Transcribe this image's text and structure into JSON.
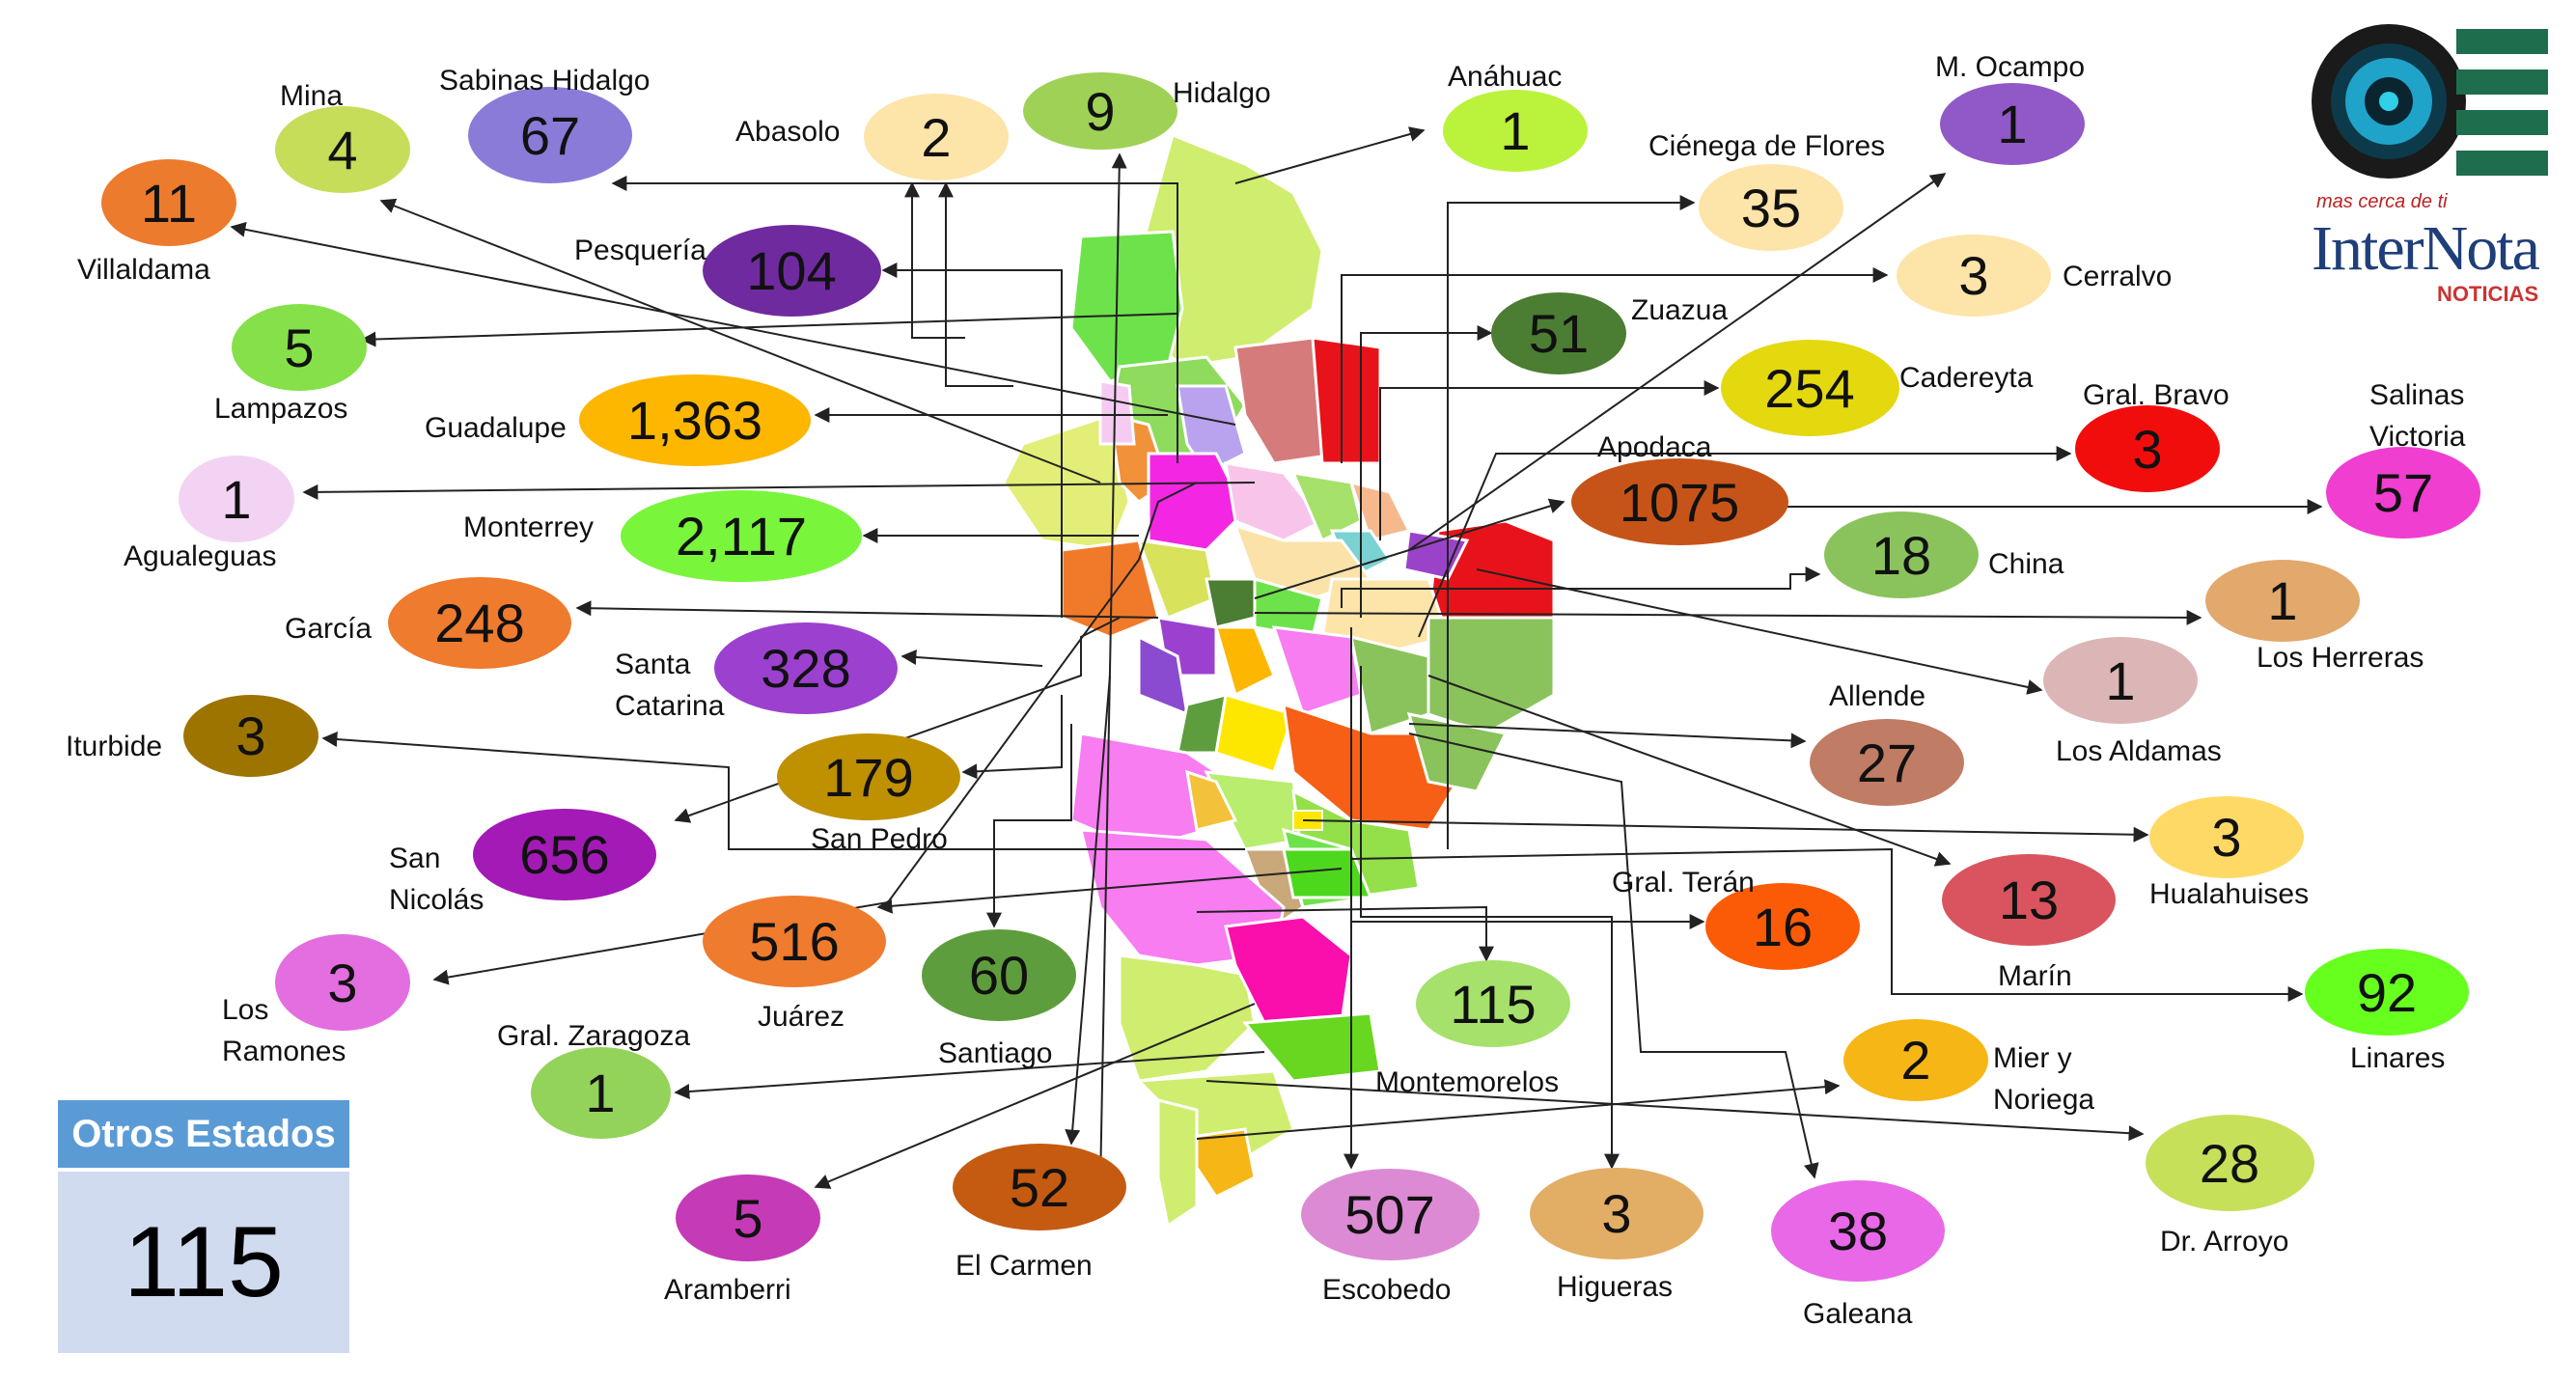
{
  "colors": {
    "line": "#222222",
    "otros_header": "#5b9bd5",
    "otros_body": "#d0dbef",
    "brand_navy": "#1f3f7a",
    "brand_green": "#1e6e4e",
    "brand_red": "#c33333"
  },
  "logo": {
    "icon": "camera-lens-icon",
    "slogan": "mas cerca de ti",
    "brand": "InterNota",
    "subtitle": "NOTICIAS"
  },
  "otros_estados": {
    "title": "Otros Estados",
    "value": "115"
  },
  "municipalities": [
    {
      "id": "mina",
      "name": "Mina",
      "cases": "4",
      "color": "#c6dd5a"
    },
    {
      "id": "sabinas",
      "name": "Sabinas Hidalgo",
      "cases": "67",
      "color": "#8b7bd8"
    },
    {
      "id": "abasolo",
      "name": "Abasolo",
      "cases": "2",
      "color": "#fde4a8"
    },
    {
      "id": "hidalgo",
      "name": "Hidalgo",
      "cases": "9",
      "color": "#9ed156"
    },
    {
      "id": "anahuac",
      "name": "Anáhuac",
      "cases": "1",
      "color": "#bbf23c"
    },
    {
      "id": "mocampo",
      "name": "M. Ocampo",
      "cases": "1",
      "color": "#9158c8"
    },
    {
      "id": "cienega",
      "name": "Ciénega de Flores",
      "cases": "35",
      "color": "#fde4a8"
    },
    {
      "id": "villaldama",
      "name": "Villaldama",
      "cases": "11",
      "color": "#ec7b2d"
    },
    {
      "id": "pesqueria",
      "name": "Pesquería",
      "cases": "104",
      "color": "#6f2aa0"
    },
    {
      "id": "cerralvo",
      "name": "Cerralvo",
      "cases": "3",
      "color": "#fde4a8"
    },
    {
      "id": "lampazos",
      "name": "Lampazos",
      "cases": "5",
      "color": "#86e04a"
    },
    {
      "id": "zuazua",
      "name": "Zuazua",
      "cases": "51",
      "color": "#4b7d32"
    },
    {
      "id": "cadereyta",
      "name": "Cadereyta",
      "cases": "254",
      "color": "#e4d80f"
    },
    {
      "id": "gralbravo",
      "name": "Gral. Bravo",
      "cases": "3",
      "color": "#f20d0d"
    },
    {
      "id": "salinas",
      "name": "Salinas\nVictoria",
      "cases": "57",
      "color": "#ef3ed0"
    },
    {
      "id": "guadalupe",
      "name": "Guadalupe",
      "cases": "1,363",
      "color": "#fdb700"
    },
    {
      "id": "apodaca",
      "name": "Apodaca",
      "cases": "1075",
      "color": "#c65418"
    },
    {
      "id": "agualeguas",
      "name": "Agualeguas",
      "cases": "1",
      "color": "#f3d3f3"
    },
    {
      "id": "monterrey",
      "name": "Monterrey",
      "cases": "2,117",
      "color": "#79f53c"
    },
    {
      "id": "china",
      "name": "China",
      "cases": "18",
      "color": "#8ac35c"
    },
    {
      "id": "herreras",
      "name": "Los Herreras",
      "cases": "1",
      "color": "#e2a86c"
    },
    {
      "id": "garcia",
      "name": "García",
      "cases": "248",
      "color": "#ef7b2e"
    },
    {
      "id": "stacatarina",
      "name": "Santa\nCatarina",
      "cases": "328",
      "color": "#9c40d0"
    },
    {
      "id": "aldamas",
      "name": "Los Aldamas",
      "cases": "1",
      "color": "#dcb6b6"
    },
    {
      "id": "iturbide",
      "name": "Iturbide",
      "cases": "3",
      "color": "#9d7400"
    },
    {
      "id": "allende",
      "name": "Allende",
      "cases": "27",
      "color": "#c07c64"
    },
    {
      "id": "sanpedro",
      "name": "San Pedro",
      "cases": "179",
      "color": "#bf9000"
    },
    {
      "id": "sannicolas",
      "name": "San\nNicolás",
      "cases": "656",
      "color": "#a31ab7"
    },
    {
      "id": "hualahuises",
      "name": "Hualahuises",
      "cases": "3",
      "color": "#ffd966"
    },
    {
      "id": "marin",
      "name": "Marín",
      "cases": "13",
      "color": "#d9545e"
    },
    {
      "id": "grlteran",
      "name": "Gral. Terán",
      "cases": "16",
      "color": "#fb5b06"
    },
    {
      "id": "juarez",
      "name": "Juárez",
      "cases": "516",
      "color": "#ef7b2e"
    },
    {
      "id": "santiago",
      "name": "Santiago",
      "cases": "60",
      "color": "#5e9d3d"
    },
    {
      "id": "ramones",
      "name": "Los\nRamones",
      "cases": "3",
      "color": "#e36edf"
    },
    {
      "id": "montemorelos",
      "name": "Montemorelos",
      "cases": "115",
      "color": "#a6e16b"
    },
    {
      "id": "linares",
      "name": "Linares",
      "cases": "92",
      "color": "#66ff1e"
    },
    {
      "id": "zaragoza",
      "name": "Gral. Zaragoza",
      "cases": "1",
      "color": "#94d35a"
    },
    {
      "id": "mier",
      "name": "Mier y\nNoriega",
      "cases": "2",
      "color": "#f6b615"
    },
    {
      "id": "drarroyo",
      "name": "Dr. Arroyo",
      "cases": "28",
      "color": "#c6e05a"
    },
    {
      "id": "aramberri",
      "name": "Aramberri",
      "cases": "5",
      "color": "#c53ab6"
    },
    {
      "id": "elcarmen",
      "name": "El Carmen",
      "cases": "52",
      "color": "#c55a11"
    },
    {
      "id": "escobedo",
      "name": "Escobedo",
      "cases": "507",
      "color": "#dc8ad4"
    },
    {
      "id": "higueras",
      "name": "Higueras",
      "cases": "3",
      "color": "#e2ad65"
    },
    {
      "id": "galeana",
      "name": "Galeana",
      "cases": "38",
      "color": "#e868e8"
    }
  ]
}
